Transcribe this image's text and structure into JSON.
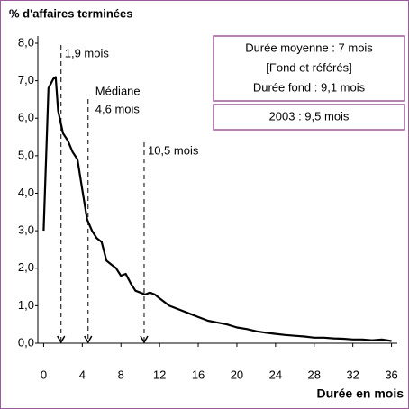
{
  "chart_data": {
    "type": "line",
    "title": "% d'affaires terminées",
    "x_label": "Durée en mois",
    "x": [
      0,
      0.5,
      1,
      1.25,
      1.5,
      2,
      2.5,
      3,
      3.5,
      4,
      4.5,
      5,
      5.5,
      6,
      6.5,
      7,
      7.5,
      8,
      8.5,
      9,
      9.5,
      10,
      10.5,
      11,
      11.5,
      12,
      13,
      14,
      15,
      16,
      17,
      18,
      19,
      20,
      21,
      22,
      23,
      24,
      25,
      26,
      27,
      28,
      29,
      30,
      31,
      32,
      33,
      34,
      35,
      36
    ],
    "series": [
      {
        "color": "#000000",
        "values": [
          3.0,
          6.8,
          7.05,
          7.1,
          6.2,
          5.6,
          5.4,
          5.1,
          4.9,
          4.1,
          3.3,
          3.0,
          2.8,
          2.7,
          2.2,
          2.1,
          2.0,
          1.8,
          1.85,
          1.6,
          1.4,
          1.35,
          1.3,
          1.35,
          1.3,
          1.2,
          1.0,
          0.9,
          0.8,
          0.7,
          0.6,
          0.55,
          0.5,
          0.42,
          0.38,
          0.32,
          0.28,
          0.25,
          0.22,
          0.2,
          0.18,
          0.15,
          0.15,
          0.13,
          0.12,
          0.1,
          0.1,
          0.08,
          0.1,
          0.06
        ]
      }
    ],
    "xlim": [
      -0.6,
      36.6
    ],
    "xticks": [
      0,
      4,
      8,
      12,
      16,
      20,
      24,
      28,
      32,
      36
    ],
    "ylim": [
      0,
      8
    ],
    "yticks": [
      {
        "value": 0,
        "label": "0,0"
      },
      {
        "value": 1,
        "label": "1,0"
      },
      {
        "value": 2,
        "label": "2,0"
      },
      {
        "value": 3,
        "label": "3,0"
      },
      {
        "value": 4,
        "label": "4,0"
      },
      {
        "value": 5,
        "label": "5,0"
      },
      {
        "value": 6,
        "label": "6,0"
      },
      {
        "value": 7,
        "label": "7,0"
      },
      {
        "value": 8,
        "label": "8,0"
      }
    ],
    "grid": false,
    "markers": [
      {
        "x": 1.8,
        "labels": [
          "1,9 mois"
        ]
      },
      {
        "x": 4.6,
        "labels": [
          "Médiane",
          "4,6 mois"
        ]
      },
      {
        "x": 10.4,
        "labels": [
          "10,5 mois"
        ]
      }
    ],
    "boxes": [
      [
        "Durée moyenne : 7 mois",
        "[Fond et référés]",
        "Durée fond : 9,1 mois"
      ],
      [
        "2003 : 9,5  mois"
      ]
    ]
  }
}
